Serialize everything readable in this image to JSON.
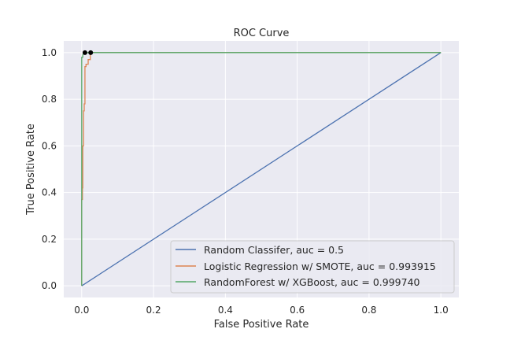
{
  "chart_data": {
    "type": "line",
    "title": "ROC Curve",
    "xlabel": "False Positive Rate",
    "ylabel": "True Positive Rate",
    "xlim": [
      -0.05,
      1.05
    ],
    "ylim": [
      -0.05,
      1.05
    ],
    "xticks": [
      "0.0",
      "0.2",
      "0.4",
      "0.6",
      "0.8",
      "1.0"
    ],
    "yticks": [
      "0.0",
      "0.2",
      "0.4",
      "0.6",
      "0.8",
      "1.0"
    ],
    "grid": true,
    "legend_position": "bottom-right",
    "series": [
      {
        "name": "Random Classifer, auc = 0.5",
        "color": "#4c72b0",
        "x": [
          0,
          1
        ],
        "y": [
          0,
          1
        ]
      },
      {
        "name": "Logistic Regression w/ SMOTE, auc = 0.993915",
        "color": "#dd8452",
        "x": [
          0,
          0,
          0.002,
          0.002,
          0.003,
          0.003,
          0.005,
          0.005,
          0.007,
          0.007,
          0.009,
          0.009,
          0.012,
          0.012,
          0.018,
          0.018,
          0.024,
          0.024,
          0.03,
          1
        ],
        "y": [
          0,
          0.37,
          0.37,
          0.42,
          0.42,
          0.6,
          0.6,
          0.75,
          0.75,
          0.78,
          0.78,
          0.94,
          0.94,
          0.95,
          0.95,
          0.97,
          0.97,
          1.0,
          1.0,
          1.0
        ]
      },
      {
        "name": "RandomForest w/ XGBoost, auc = 0.999740",
        "color": "#55a868",
        "x": [
          0,
          0,
          0.003,
          0.003,
          0.008,
          1
        ],
        "y": [
          0,
          0.98,
          0.98,
          0.99,
          1.0,
          1.0
        ]
      }
    ],
    "markers": [
      {
        "x": 0.009,
        "y": 1.0,
        "color": "#000000"
      },
      {
        "x": 0.025,
        "y": 1.0,
        "color": "#000000"
      }
    ]
  }
}
